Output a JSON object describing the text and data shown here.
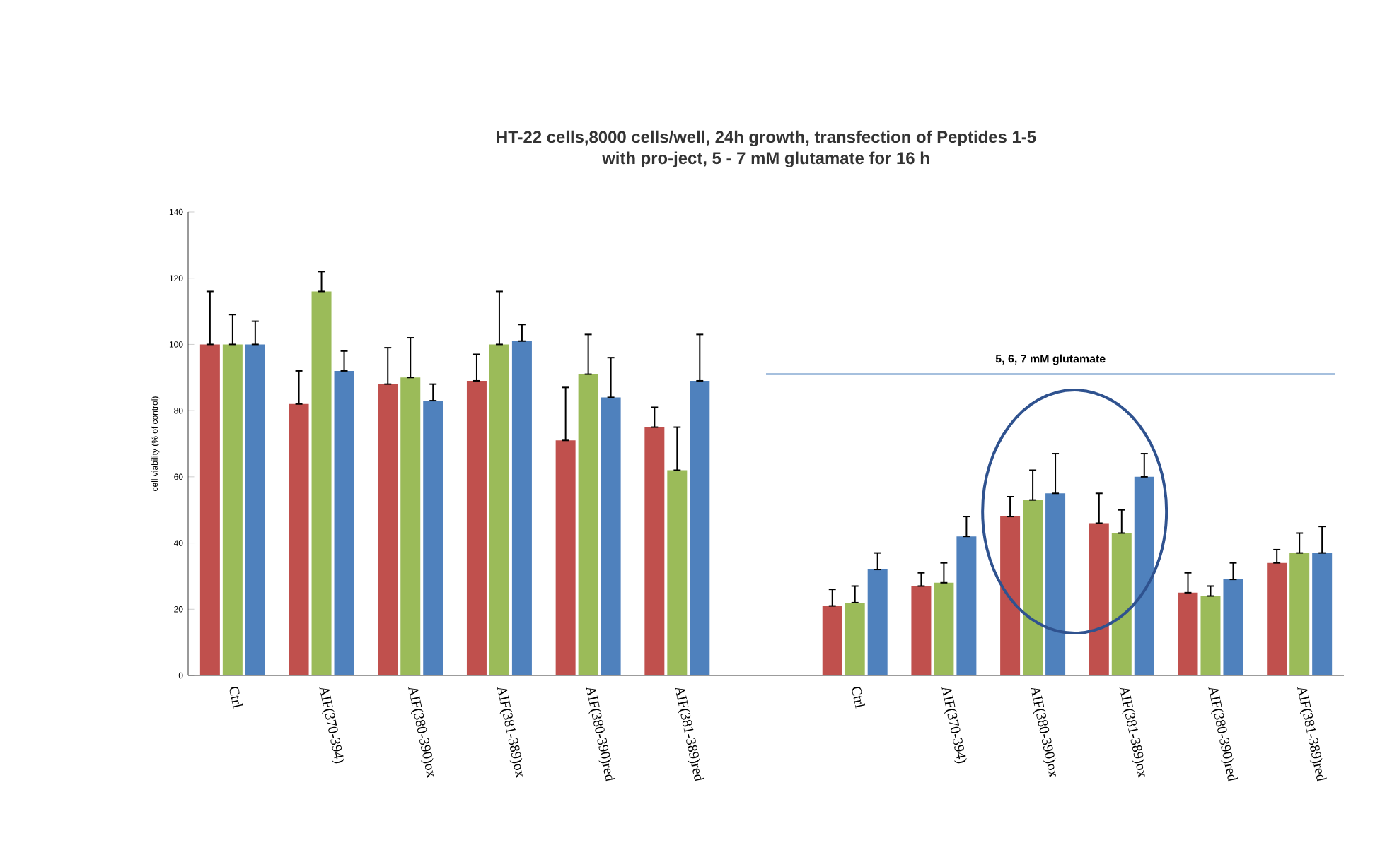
{
  "chart_data": {
    "type": "bar",
    "title": "HT-22 cells,8000 cells/well, 24h growth, transfection of Peptides 1-5",
    "subtitle": "with pro-ject, 5 - 7 mM glutamate for 16 h",
    "ylabel": "cell viability (% of control)",
    "categories": [
      "Ctrl",
      "AIF(370-394)",
      "AIF(380-390)ox",
      "AIF(381-389)ox",
      "AIF(380-390)red",
      "AIF(381-389)red",
      null,
      "Ctrl",
      "AIF(370-394)",
      "AIF(380-390)ox",
      "AIF(381-389)ox",
      "AIF(380-390)red",
      "AIF(381-389)red"
    ],
    "series": [
      {
        "color": "#c0504d",
        "values": [
          100,
          82,
          88,
          89,
          71,
          75,
          null,
          21,
          27,
          48,
          46,
          25,
          34
        ],
        "errors": [
          [
            100,
            116
          ],
          [
            82,
            92
          ],
          [
            88,
            99
          ],
          [
            89,
            97
          ],
          [
            71,
            87
          ],
          [
            75,
            81
          ],
          null,
          [
            21,
            26
          ],
          [
            27,
            31
          ],
          [
            48,
            54
          ],
          [
            46,
            55
          ],
          [
            25,
            31
          ],
          [
            34,
            38
          ]
        ]
      },
      {
        "color": "#9bbb59",
        "values": [
          100,
          116,
          90,
          100,
          91,
          62,
          null,
          22,
          28,
          53,
          43,
          24,
          37
        ],
        "errors": [
          [
            100,
            109
          ],
          [
            116,
            122
          ],
          [
            90,
            102
          ],
          [
            100,
            116
          ],
          [
            91,
            103
          ],
          [
            62,
            75
          ],
          null,
          [
            22,
            27
          ],
          [
            28,
            34
          ],
          [
            53,
            62
          ],
          [
            43,
            50
          ],
          [
            24,
            27
          ],
          [
            37,
            43
          ]
        ]
      },
      {
        "color": "#4f81bd",
        "values": [
          100,
          92,
          83,
          101,
          84,
          89,
          null,
          32,
          42,
          55,
          60,
          29,
          37
        ],
        "errors": [
          [
            100,
            107
          ],
          [
            92,
            98
          ],
          [
            83,
            88
          ],
          [
            101,
            106
          ],
          [
            84,
            96
          ],
          [
            89,
            103
          ],
          null,
          [
            32,
            37
          ],
          [
            42,
            48
          ],
          [
            55,
            67
          ],
          [
            60,
            67
          ],
          [
            29,
            34
          ],
          [
            37,
            45
          ]
        ]
      }
    ],
    "ylim": [
      0,
      140
    ],
    "yticks": [
      0,
      20,
      40,
      60,
      80,
      100,
      120,
      140
    ],
    "ref_lines": [
      {
        "axis": "y",
        "value": 91,
        "label": "5, 6, 7 mM glutamate",
        "color": "#4f81bd"
      }
    ]
  }
}
